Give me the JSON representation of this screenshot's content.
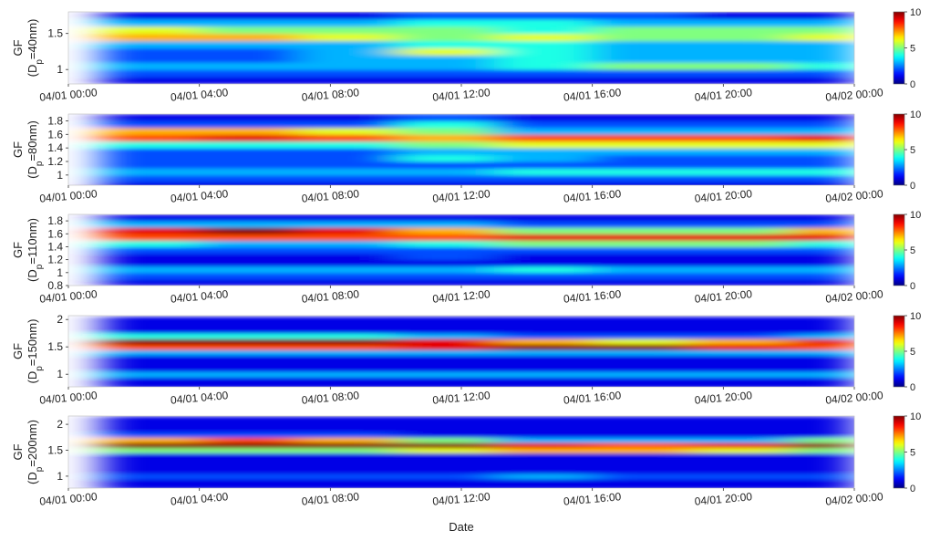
{
  "chart_data": [
    {
      "type": "heatmap",
      "ylabel": "GF",
      "ylabel_sub": {
        "before": "(D",
        "sub": "p",
        "after": "=40nm)"
      },
      "xlim": [
        0,
        24
      ],
      "xticks": [
        {
          "value": 0,
          "label": "04/01 00:00"
        },
        {
          "value": 4,
          "label": "04/01 04:00"
        },
        {
          "value": 8,
          "label": "04/01 08:00"
        },
        {
          "value": 12,
          "label": "04/01 12:00"
        },
        {
          "value": 16,
          "label": "04/01 16:00"
        },
        {
          "value": 20,
          "label": "04/01 20:00"
        },
        {
          "value": 24,
          "label": "04/02 00:00"
        }
      ],
      "ylim": [
        0.8,
        1.8
      ],
      "yticks": [
        1,
        1.5
      ],
      "xbins": [
        1,
        4,
        7,
        10,
        13,
        16,
        19,
        22,
        24
      ],
      "ybins": [
        0.8,
        0.9,
        1.0,
        1.1,
        1.2,
        1.3,
        1.4,
        1.5,
        1.6,
        1.7,
        1.8
      ],
      "z": [
        [
          1,
          1,
          1,
          1,
          1,
          1,
          1,
          1
        ],
        [
          2,
          2,
          2,
          2,
          2,
          2,
          2,
          2
        ],
        [
          3,
          3,
          3,
          3,
          4,
          5,
          5,
          4
        ],
        [
          2,
          2,
          3,
          3,
          4,
          3,
          3,
          3
        ],
        [
          2,
          2,
          3,
          6,
          4,
          3,
          3,
          3
        ],
        [
          3,
          3,
          3,
          4,
          4,
          3,
          3,
          3
        ],
        [
          7,
          7,
          6,
          5,
          6,
          5,
          5,
          6
        ],
        [
          6,
          5,
          5,
          5,
          4,
          5,
          5,
          5
        ],
        [
          3,
          3,
          3,
          4,
          4,
          3,
          3,
          3
        ],
        [
          1,
          1,
          1,
          2,
          2,
          2,
          1,
          1
        ]
      ],
      "colormap": "jet",
      "clim": [
        0,
        10
      ],
      "cticks": [
        0,
        5,
        10
      ]
    },
    {
      "type": "heatmap",
      "ylabel": "GF",
      "ylabel_sub": {
        "before": "(D",
        "sub": "p",
        "after": "=80nm)"
      },
      "xlim": [
        0,
        24
      ],
      "xticks": [
        {
          "value": 0,
          "label": "04/01 00:00"
        },
        {
          "value": 4,
          "label": "04/01 04:00"
        },
        {
          "value": 8,
          "label": "04/01 08:00"
        },
        {
          "value": 12,
          "label": "04/01 12:00"
        },
        {
          "value": 16,
          "label": "04/01 16:00"
        },
        {
          "value": 20,
          "label": "04/01 20:00"
        },
        {
          "value": 24,
          "label": "04/02 00:00"
        }
      ],
      "ylim": [
        0.85,
        1.9
      ],
      "yticks": [
        1,
        1.2,
        1.4,
        1.6,
        1.8
      ],
      "xbins": [
        1,
        4,
        7,
        10,
        13,
        16,
        19,
        22,
        24
      ],
      "ybins": [
        0.8,
        0.9,
        1.0,
        1.1,
        1.2,
        1.3,
        1.4,
        1.5,
        1.6,
        1.7,
        1.8,
        1.9
      ],
      "z": [
        [
          1,
          1,
          1,
          1,
          1,
          1,
          1,
          1
        ],
        [
          2,
          2,
          2,
          2,
          2,
          2,
          2,
          2
        ],
        [
          3,
          3,
          3,
          3,
          4,
          4,
          4,
          4
        ],
        [
          2,
          2,
          2,
          2,
          2,
          2,
          2,
          2
        ],
        [
          2,
          2,
          2,
          4,
          3,
          2,
          2,
          2
        ],
        [
          2,
          2,
          2,
          3,
          3,
          3,
          3,
          3
        ],
        [
          4,
          4,
          4,
          5,
          6,
          6,
          6,
          6
        ],
        [
          8,
          9,
          8,
          7,
          8,
          8,
          8,
          9
        ],
        [
          7,
          7,
          6,
          5,
          3,
          3,
          3,
          3
        ],
        [
          2,
          2,
          2,
          4,
          2,
          2,
          2,
          2
        ],
        [
          1,
          1,
          1,
          2,
          1,
          1,
          1,
          1
        ]
      ],
      "colormap": "jet",
      "clim": [
        0,
        10
      ],
      "cticks": [
        0,
        5,
        10
      ]
    },
    {
      "type": "heatmap",
      "ylabel": "GF",
      "ylabel_sub": {
        "before": "(D",
        "sub": "p",
        "after": "=110nm)"
      },
      "xlim": [
        0,
        24
      ],
      "xticks": [
        {
          "value": 0,
          "label": "04/01 00:00"
        },
        {
          "value": 4,
          "label": "04/01 04:00"
        },
        {
          "value": 8,
          "label": "04/01 08:00"
        },
        {
          "value": 12,
          "label": "04/01 12:00"
        },
        {
          "value": 16,
          "label": "04/01 16:00"
        },
        {
          "value": 20,
          "label": "04/01 20:00"
        },
        {
          "value": 24,
          "label": "04/02 00:00"
        }
      ],
      "ylim": [
        0.8,
        1.9
      ],
      "yticks": [
        0.8,
        1,
        1.2,
        1.4,
        1.6,
        1.8
      ],
      "xbins": [
        1,
        4,
        7,
        10,
        13,
        16,
        19,
        22,
        24
      ],
      "ybins": [
        0.8,
        0.9,
        1.0,
        1.1,
        1.2,
        1.3,
        1.4,
        1.5,
        1.6,
        1.7,
        1.8,
        1.9
      ],
      "z": [
        [
          1,
          1,
          1,
          1,
          1,
          1,
          1,
          1
        ],
        [
          2,
          2,
          2,
          2,
          2,
          2,
          2,
          2
        ],
        [
          3,
          3,
          3,
          3,
          4,
          3,
          3,
          3
        ],
        [
          1,
          1,
          1,
          1,
          1,
          1,
          1,
          1
        ],
        [
          1,
          1,
          1,
          2,
          1,
          1,
          1,
          1
        ],
        [
          2,
          2,
          2,
          2,
          2,
          2,
          2,
          2
        ],
        [
          4,
          3,
          3,
          4,
          5,
          5,
          5,
          4
        ],
        [
          8,
          8,
          8,
          8,
          9,
          9,
          9,
          9
        ],
        [
          9,
          10,
          9,
          7,
          5,
          5,
          5,
          7
        ],
        [
          3,
          3,
          3,
          3,
          2,
          2,
          2,
          2
        ],
        [
          1,
          1,
          1,
          1,
          1,
          1,
          1,
          1
        ]
      ],
      "colormap": "jet",
      "clim": [
        0,
        10
      ],
      "cticks": [
        0,
        5,
        10
      ]
    },
    {
      "type": "heatmap",
      "ylabel": "GF",
      "ylabel_sub": {
        "before": "(D",
        "sub": "p",
        "after": "=150nm)"
      },
      "xlim": [
        0,
        24
      ],
      "xticks": [
        {
          "value": 0,
          "label": "04/01 00:00"
        },
        {
          "value": 4,
          "label": "04/01 04:00"
        },
        {
          "value": 8,
          "label": "04/01 08:00"
        },
        {
          "value": 12,
          "label": "04/01 12:00"
        },
        {
          "value": 16,
          "label": "04/01 16:00"
        },
        {
          "value": 20,
          "label": "04/01 20:00"
        },
        {
          "value": 24,
          "label": "04/02 00:00"
        }
      ],
      "ylim": [
        0.77,
        2.07
      ],
      "yticks": [
        1,
        1.5,
        2
      ],
      "xbins": [
        1,
        4,
        7,
        10,
        13,
        16,
        19,
        22,
        24
      ],
      "ybins": [
        0.75,
        0.85,
        0.95,
        1.05,
        1.15,
        1.25,
        1.35,
        1.45,
        1.55,
        1.65,
        1.75,
        1.85,
        1.95,
        2.05
      ],
      "z": [
        [
          1,
          1,
          1,
          1,
          1,
          1,
          1,
          1
        ],
        [
          1,
          1,
          1,
          1,
          1,
          1,
          1,
          1
        ],
        [
          3,
          3,
          3,
          3,
          3,
          3,
          3,
          3
        ],
        [
          1,
          1,
          1,
          1,
          1,
          1,
          1,
          1
        ],
        [
          1,
          1,
          1,
          1,
          1,
          1,
          1,
          1
        ],
        [
          1,
          1,
          1,
          1,
          1,
          1,
          1,
          1
        ],
        [
          3,
          3,
          3,
          3,
          3,
          3,
          3,
          3
        ],
        [
          8,
          8,
          8,
          9,
          10,
          10,
          9,
          8
        ],
        [
          10,
          10,
          10,
          9,
          7,
          6,
          7,
          9
        ],
        [
          4,
          4,
          4,
          3,
          2,
          2,
          2,
          3
        ],
        [
          1,
          1,
          1,
          1,
          1,
          1,
          1,
          1
        ],
        [
          1,
          1,
          1,
          1,
          1,
          1,
          1,
          1
        ],
        [
          1,
          1,
          1,
          1,
          1,
          1,
          1,
          1
        ]
      ],
      "colormap": "jet",
      "clim": [
        0,
        10
      ],
      "cticks": [
        0,
        5,
        10
      ]
    },
    {
      "type": "heatmap",
      "ylabel": "GF",
      "ylabel_sub": {
        "before": "(D",
        "sub": "p",
        "after": "=200nm)"
      },
      "xlabel": "Date",
      "xlim": [
        0,
        24
      ],
      "xticks": [
        {
          "value": 0,
          "label": "04/01 00:00"
        },
        {
          "value": 4,
          "label": "04/01 04:00"
        },
        {
          "value": 8,
          "label": "04/01 08:00"
        },
        {
          "value": 12,
          "label": "04/01 12:00"
        },
        {
          "value": 16,
          "label": "04/01 16:00"
        },
        {
          "value": 20,
          "label": "04/01 20:00"
        },
        {
          "value": 24,
          "label": "04/02 00:00"
        }
      ],
      "ylim": [
        0.77,
        2.16
      ],
      "yticks": [
        1,
        1.5,
        2
      ],
      "xbins": [
        1,
        4,
        7,
        10,
        13,
        16,
        19,
        22,
        24
      ],
      "ybins": [
        0.75,
        0.85,
        0.95,
        1.05,
        1.15,
        1.25,
        1.35,
        1.45,
        1.55,
        1.65,
        1.75,
        1.85,
        1.95,
        2.05,
        2.15
      ],
      "z": [
        [
          1,
          1,
          1,
          1,
          1,
          1,
          1,
          1
        ],
        [
          1,
          1,
          1,
          1,
          1,
          1,
          1,
          1
        ],
        [
          2,
          2,
          2,
          2,
          3,
          2,
          2,
          2
        ],
        [
          1,
          1,
          1,
          1,
          1,
          1,
          1,
          1
        ],
        [
          1,
          1,
          1,
          1,
          1,
          1,
          1,
          1
        ],
        [
          1,
          1,
          1,
          1,
          1,
          1,
          1,
          1
        ],
        [
          1,
          1,
          1,
          1,
          1,
          1,
          1,
          1
        ],
        [
          5,
          5,
          5,
          6,
          7,
          7,
          6,
          5
        ],
        [
          10,
          10,
          10,
          10,
          9,
          8,
          9,
          10
        ],
        [
          7,
          8,
          7,
          5,
          3,
          3,
          3,
          5
        ],
        [
          2,
          2,
          2,
          1,
          1,
          1,
          1,
          1
        ],
        [
          1,
          1,
          1,
          1,
          1,
          1,
          1,
          1
        ],
        [
          1,
          1,
          1,
          1,
          1,
          1,
          1,
          1
        ],
        [
          1,
          1,
          1,
          1,
          1,
          1,
          1,
          1
        ]
      ],
      "colormap": "jet",
      "clim": [
        0,
        10
      ],
      "cticks": [
        0,
        5,
        10
      ]
    }
  ]
}
